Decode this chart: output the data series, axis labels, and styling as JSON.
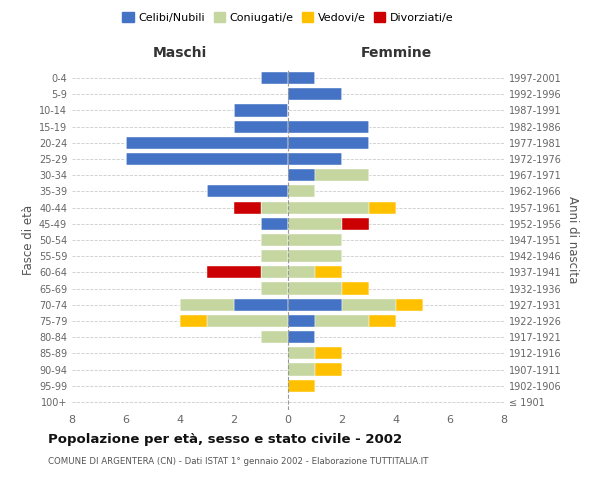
{
  "age_groups": [
    "100+",
    "95-99",
    "90-94",
    "85-89",
    "80-84",
    "75-79",
    "70-74",
    "65-69",
    "60-64",
    "55-59",
    "50-54",
    "45-49",
    "40-44",
    "35-39",
    "30-34",
    "25-29",
    "20-24",
    "15-19",
    "10-14",
    "5-9",
    "0-4"
  ],
  "birth_years": [
    "≤ 1901",
    "1902-1906",
    "1907-1911",
    "1912-1916",
    "1917-1921",
    "1922-1926",
    "1927-1931",
    "1932-1936",
    "1937-1941",
    "1942-1946",
    "1947-1951",
    "1952-1956",
    "1957-1961",
    "1962-1966",
    "1967-1971",
    "1972-1976",
    "1977-1981",
    "1982-1986",
    "1987-1991",
    "1992-1996",
    "1997-2001"
  ],
  "maschi": {
    "celibi": [
      0,
      0,
      0,
      0,
      0,
      0,
      2,
      0,
      0,
      0,
      0,
      1,
      0,
      3,
      0,
      6,
      6,
      2,
      2,
      0,
      1
    ],
    "coniugati": [
      0,
      0,
      0,
      0,
      1,
      3,
      2,
      1,
      1,
      1,
      1,
      0,
      1,
      0,
      0,
      0,
      0,
      0,
      0,
      0,
      0
    ],
    "vedovi": [
      0,
      0,
      0,
      0,
      0,
      1,
      0,
      0,
      0,
      0,
      0,
      0,
      0,
      0,
      0,
      0,
      0,
      0,
      0,
      0,
      0
    ],
    "divorziati": [
      0,
      0,
      0,
      0,
      0,
      0,
      0,
      0,
      2,
      0,
      0,
      0,
      1,
      0,
      0,
      0,
      0,
      0,
      0,
      0,
      0
    ]
  },
  "femmine": {
    "nubili": [
      0,
      0,
      0,
      0,
      1,
      1,
      2,
      0,
      0,
      0,
      0,
      0,
      0,
      0,
      1,
      2,
      3,
      3,
      0,
      2,
      1
    ],
    "coniugate": [
      0,
      0,
      1,
      1,
      0,
      2,
      2,
      2,
      1,
      2,
      2,
      2,
      3,
      1,
      2,
      0,
      0,
      0,
      0,
      0,
      0
    ],
    "vedove": [
      0,
      1,
      1,
      1,
      0,
      1,
      1,
      1,
      1,
      0,
      0,
      0,
      1,
      0,
      0,
      0,
      0,
      0,
      0,
      0,
      0
    ],
    "divorziate": [
      0,
      0,
      0,
      0,
      0,
      0,
      0,
      0,
      0,
      0,
      0,
      1,
      0,
      0,
      0,
      0,
      0,
      0,
      0,
      0,
      0
    ]
  },
  "color_celibi": "#4472c4",
  "color_coniugati": "#c5d6a0",
  "color_vedovi": "#ffc000",
  "color_divorziati": "#cc0000",
  "xlim": [
    -8,
    8
  ],
  "xticks": [
    -8,
    -6,
    -4,
    -2,
    0,
    2,
    4,
    6,
    8
  ],
  "xticklabels": [
    "8",
    "6",
    "4",
    "2",
    "0",
    "2",
    "4",
    "6",
    "8"
  ],
  "title": "Popolazione per età, sesso e stato civile - 2002",
  "subtitle": "COMUNE DI ARGENTERA (CN) - Dati ISTAT 1° gennaio 2002 - Elaborazione TUTTITALIA.IT",
  "ylabel_left": "Fasce di età",
  "ylabel_right": "Anni di nascita",
  "xlabel_left": "Maschi",
  "xlabel_right": "Femmine",
  "legend_labels": [
    "Celibi/Nubili",
    "Coniugati/e",
    "Vedovi/e",
    "Divorziati/e"
  ]
}
